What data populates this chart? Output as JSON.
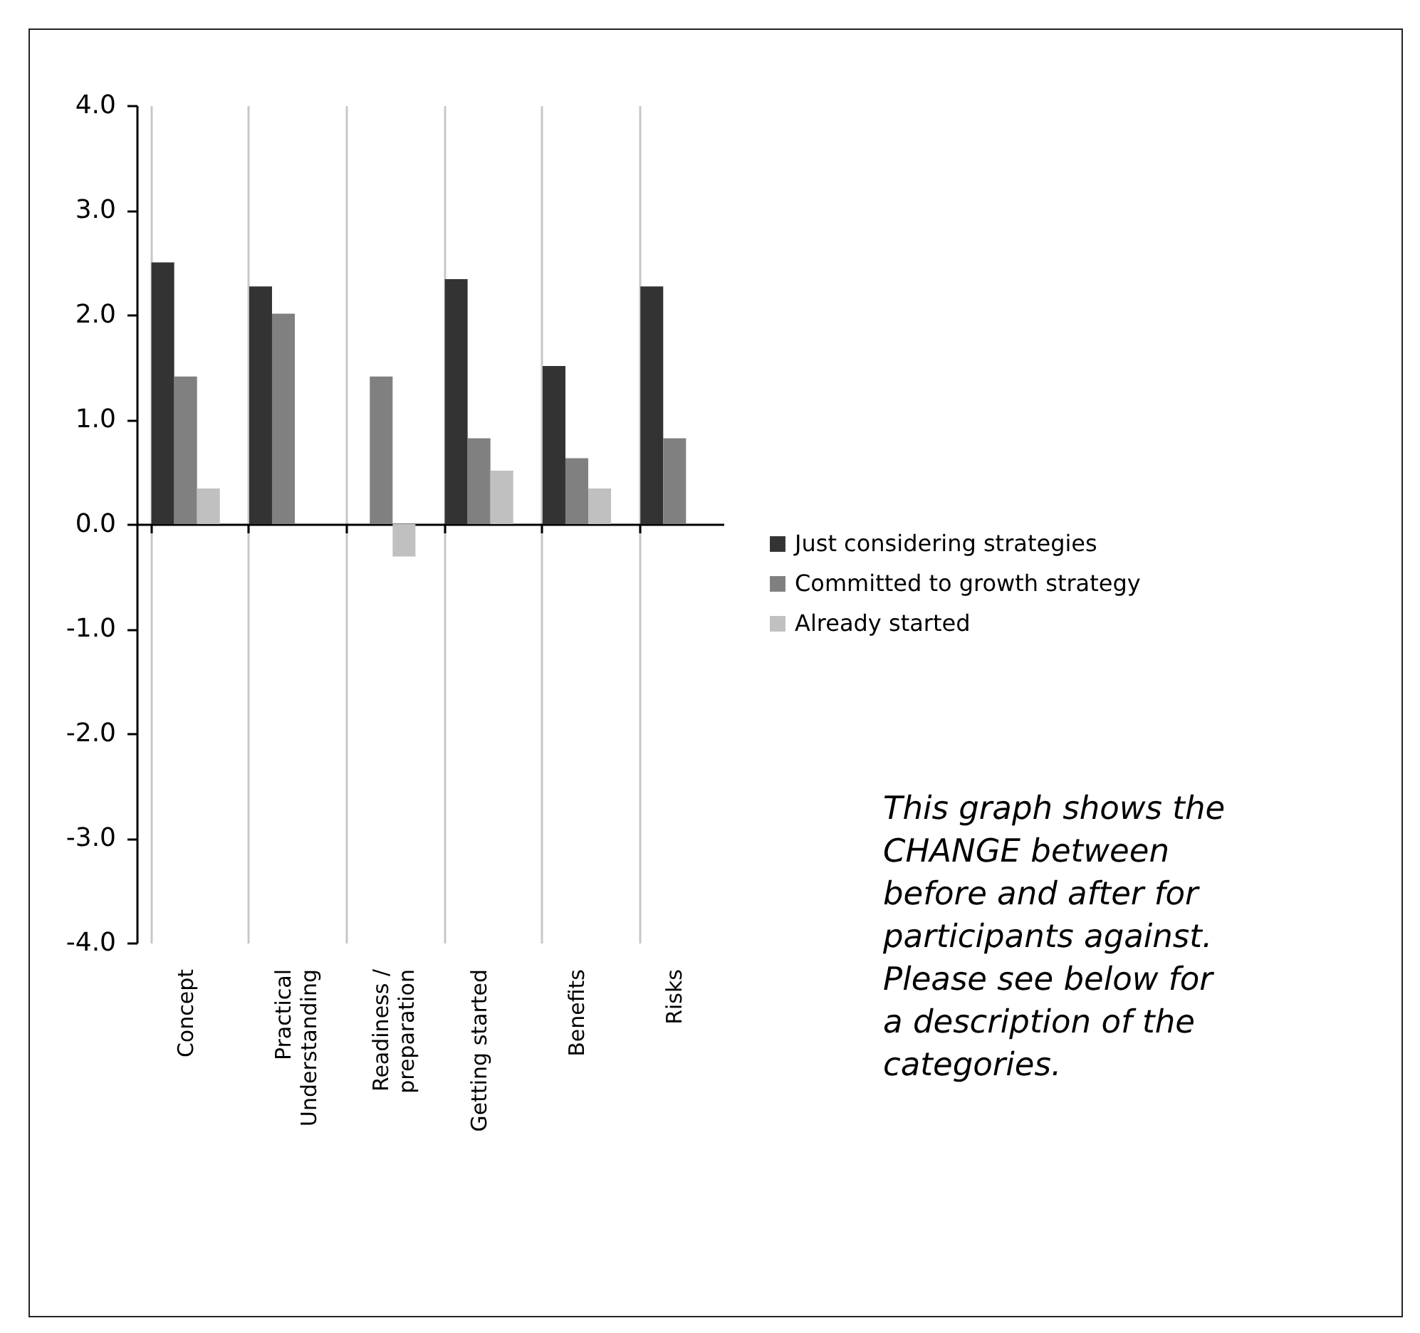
{
  "chart_data": {
    "type": "bar",
    "categories": [
      "Concept",
      "Practical Understanding",
      "Readiness / preparation",
      "Getting started",
      "Benefits",
      "Risks"
    ],
    "series": [
      {
        "name": "Just considering strategies",
        "color": "#333333",
        "values": [
          2.5,
          2.27,
          null,
          2.34,
          1.51,
          2.27
        ]
      },
      {
        "name": "Committed to growth strategy",
        "color": "#808080",
        "values": [
          1.41,
          2.01,
          1.41,
          0.82,
          0.63,
          0.82
        ]
      },
      {
        "name": "Already started",
        "color": "#c0c0c0",
        "values": [
          0.34,
          null,
          -0.31,
          0.51,
          0.34,
          null
        ]
      }
    ],
    "ylim": [
      -4,
      4
    ],
    "yticks": [
      {
        "value": -4,
        "label": "-4.0"
      },
      {
        "value": -3,
        "label": "-3.0"
      },
      {
        "value": -2,
        "label": "-2.0"
      },
      {
        "value": -1,
        "label": "-1.0"
      },
      {
        "value": 0,
        "label": "0.0"
      },
      {
        "value": 1,
        "label": "1.0"
      },
      {
        "value": 2,
        "label": "2.0"
      },
      {
        "value": 3,
        "label": "3.0"
      },
      {
        "value": 4,
        "label": "4.0"
      }
    ],
    "grid": "x",
    "legend": "right",
    "annotations": [
      "This graph shows the CHANGE between before and after for participants against. Please see below for a description of the categories."
    ]
  }
}
